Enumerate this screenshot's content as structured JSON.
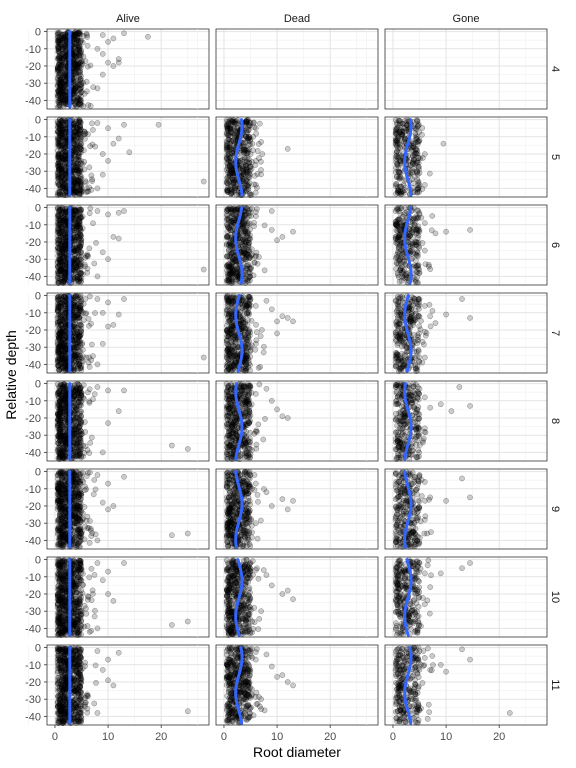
{
  "chart_data": {
    "type": "scatter",
    "xlabel": "Root diameter",
    "ylabel": "Relative depth",
    "xlim": [
      -1.5,
      29
    ],
    "ylim": [
      -45,
      1.5
    ],
    "x_ticks": [
      0,
      10,
      20
    ],
    "y_ticks": [
      0,
      -10,
      -20,
      -30,
      -40
    ],
    "x_tick_labels": [
      "0",
      "10",
      "20"
    ],
    "y_tick_labels": [
      "0",
      "-10",
      "-20",
      "-30",
      "-40"
    ],
    "columns": [
      "Alive",
      "Dead",
      "Gone"
    ],
    "rows": [
      "4",
      "5",
      "6",
      "7",
      "8",
      "9",
      "10",
      "11"
    ],
    "grid": true,
    "point_color": "#000000",
    "point_alpha": 0.2,
    "smooth_color": "#3366FF",
    "panels_empty": [
      {
        "row": "4",
        "column": "Dead"
      },
      {
        "row": "4",
        "column": "Gone"
      }
    ],
    "dense_band": {
      "x_min": 0.5,
      "x_max": 5,
      "y_min": -44,
      "y_max": 0
    },
    "smooth_center": 2.8,
    "outliers": {
      "4|Alive": [
        [
          9,
          -2
        ],
        [
          10,
          -6
        ],
        [
          11,
          -4
        ],
        [
          13,
          -1
        ],
        [
          8,
          -10
        ],
        [
          9,
          -13
        ],
        [
          10,
          -18
        ],
        [
          11,
          -20
        ],
        [
          12,
          -18
        ],
        [
          9,
          -25
        ],
        [
          12,
          -16
        ],
        [
          17.5,
          -3
        ],
        [
          8,
          -33
        ]
      ],
      "5|Alive": [
        [
          8,
          -2
        ],
        [
          10,
          -5
        ],
        [
          11,
          -14
        ],
        [
          12,
          -11
        ],
        [
          13,
          -3
        ],
        [
          9,
          -20
        ],
        [
          10,
          -24
        ],
        [
          9,
          -32
        ],
        [
          14,
          -19
        ],
        [
          19.5,
          -3
        ],
        [
          28,
          -36
        ],
        [
          8,
          -40
        ]
      ],
      "5|Dead": [
        [
          5,
          -2
        ],
        [
          6,
          -5
        ],
        [
          5.5,
          -10
        ],
        [
          7,
          -13
        ],
        [
          12,
          -17
        ],
        [
          5,
          -20
        ],
        [
          6,
          -24
        ]
      ],
      "5|Gone": [
        [
          4,
          -5
        ],
        [
          5,
          -12
        ],
        [
          6,
          -20
        ],
        [
          9.5,
          -14
        ],
        [
          5,
          -31
        ],
        [
          6,
          -38
        ]
      ],
      "6|Alive": [
        [
          8,
          -2
        ],
        [
          10,
          -4
        ],
        [
          12,
          -3
        ],
        [
          13,
          -2
        ],
        [
          11,
          -17
        ],
        [
          12,
          -18
        ],
        [
          9,
          -26
        ],
        [
          10,
          -30
        ],
        [
          28,
          -36
        ],
        [
          8,
          -40
        ]
      ],
      "6|Dead": [
        [
          5,
          -3
        ],
        [
          6,
          -5
        ],
        [
          9,
          -2
        ],
        [
          9,
          -13
        ],
        [
          10,
          -19
        ],
        [
          11,
          -17
        ],
        [
          13,
          -14
        ],
        [
          6,
          -28
        ]
      ],
      "6|Gone": [
        [
          5,
          -4
        ],
        [
          6,
          -9
        ],
        [
          8,
          -15
        ],
        [
          10,
          -14
        ],
        [
          14.5,
          -13
        ],
        [
          6,
          -25
        ],
        [
          5,
          -38
        ]
      ],
      "7|Alive": [
        [
          8,
          -2
        ],
        [
          10,
          -4
        ],
        [
          13,
          -2
        ],
        [
          9,
          -10
        ],
        [
          12,
          -11
        ],
        [
          10,
          -18
        ],
        [
          11,
          -17
        ],
        [
          9,
          -28
        ],
        [
          28,
          -36
        ],
        [
          8,
          -40
        ]
      ],
      "7|Dead": [
        [
          5,
          -2
        ],
        [
          6,
          -6
        ],
        [
          8,
          -3
        ],
        [
          9,
          -8
        ],
        [
          10,
          -15
        ],
        [
          11,
          -12
        ],
        [
          12,
          -13
        ],
        [
          13,
          -15
        ],
        [
          10,
          -22
        ],
        [
          6,
          -28
        ]
      ],
      "7|Gone": [
        [
          5,
          -2
        ],
        [
          6,
          -6
        ],
        [
          7,
          -12
        ],
        [
          8,
          -16
        ],
        [
          10,
          -11
        ],
        [
          13,
          -2
        ],
        [
          14.5,
          -13
        ],
        [
          6,
          -21
        ],
        [
          6,
          -36
        ]
      ],
      "8|Alive": [
        [
          8,
          -2
        ],
        [
          10,
          -4
        ],
        [
          13,
          -4
        ],
        [
          12,
          -16
        ],
        [
          10,
          -23
        ],
        [
          22,
          -36
        ],
        [
          25,
          -38
        ],
        [
          9,
          -40
        ]
      ],
      "8|Dead": [
        [
          5,
          -2
        ],
        [
          6,
          -6
        ],
        [
          8,
          -3
        ],
        [
          9,
          -10
        ],
        [
          10,
          -15
        ],
        [
          11,
          -19
        ],
        [
          12,
          -20
        ],
        [
          6,
          -28
        ]
      ],
      "8|Gone": [
        [
          5,
          -3
        ],
        [
          6,
          -8
        ],
        [
          7,
          -14
        ],
        [
          9,
          -12
        ],
        [
          11,
          -16
        ],
        [
          12.5,
          -2
        ],
        [
          14.5,
          -13
        ],
        [
          6,
          -26
        ]
      ],
      "9|Alive": [
        [
          8,
          -2
        ],
        [
          10,
          -7
        ],
        [
          13,
          -3
        ],
        [
          9,
          -18
        ],
        [
          10,
          -22
        ],
        [
          11,
          -20
        ],
        [
          22,
          -37
        ],
        [
          25,
          -36
        ],
        [
          8,
          -40
        ]
      ],
      "9|Dead": [
        [
          5,
          -2
        ],
        [
          6,
          -7
        ],
        [
          8,
          -12
        ],
        [
          9,
          -20
        ],
        [
          11,
          -16
        ],
        [
          12,
          -22
        ],
        [
          13,
          -17
        ],
        [
          6,
          -30
        ]
      ],
      "9|Gone": [
        [
          5,
          -2
        ],
        [
          6,
          -6
        ],
        [
          7,
          -15
        ],
        [
          10,
          -17
        ],
        [
          13,
          -4
        ],
        [
          14.5,
          -15
        ],
        [
          6,
          -28
        ]
      ],
      "10|Alive": [
        [
          8,
          -2
        ],
        [
          10,
          -7
        ],
        [
          13,
          -2
        ],
        [
          9,
          -12
        ],
        [
          10,
          -20
        ],
        [
          11,
          -24
        ],
        [
          22,
          -38
        ],
        [
          25,
          -36
        ],
        [
          8,
          -40
        ]
      ],
      "10|Dead": [
        [
          5,
          -2
        ],
        [
          6,
          -6
        ],
        [
          8,
          -9
        ],
        [
          9,
          -15
        ],
        [
          11,
          -20
        ],
        [
          12,
          -18
        ],
        [
          13,
          -23
        ],
        [
          7,
          -30
        ]
      ],
      "10|Gone": [
        [
          5,
          -2
        ],
        [
          6,
          -8
        ],
        [
          7,
          -16
        ],
        [
          9,
          -8
        ],
        [
          13,
          -5
        ],
        [
          14.5,
          -2
        ],
        [
          6,
          -26
        ]
      ],
      "11|Alive": [
        [
          8,
          -2
        ],
        [
          10,
          -7
        ],
        [
          12,
          -3
        ],
        [
          9,
          -13
        ],
        [
          10,
          -19
        ],
        [
          11,
          -22
        ],
        [
          25,
          -37
        ],
        [
          8,
          -38
        ]
      ],
      "11|Dead": [
        [
          5,
          -2
        ],
        [
          6,
          -7
        ],
        [
          8,
          -4
        ],
        [
          9,
          -11
        ],
        [
          10,
          -17
        ],
        [
          11,
          -16
        ],
        [
          12,
          -20
        ],
        [
          13,
          -22
        ],
        [
          7,
          -30
        ]
      ],
      "11|Gone": [
        [
          5,
          -2
        ],
        [
          6,
          -6
        ],
        [
          7,
          -13
        ],
        [
          9,
          -10
        ],
        [
          10,
          -14
        ],
        [
          13,
          -1
        ],
        [
          14.5,
          -7
        ],
        [
          22,
          -38
        ]
      ]
    }
  }
}
